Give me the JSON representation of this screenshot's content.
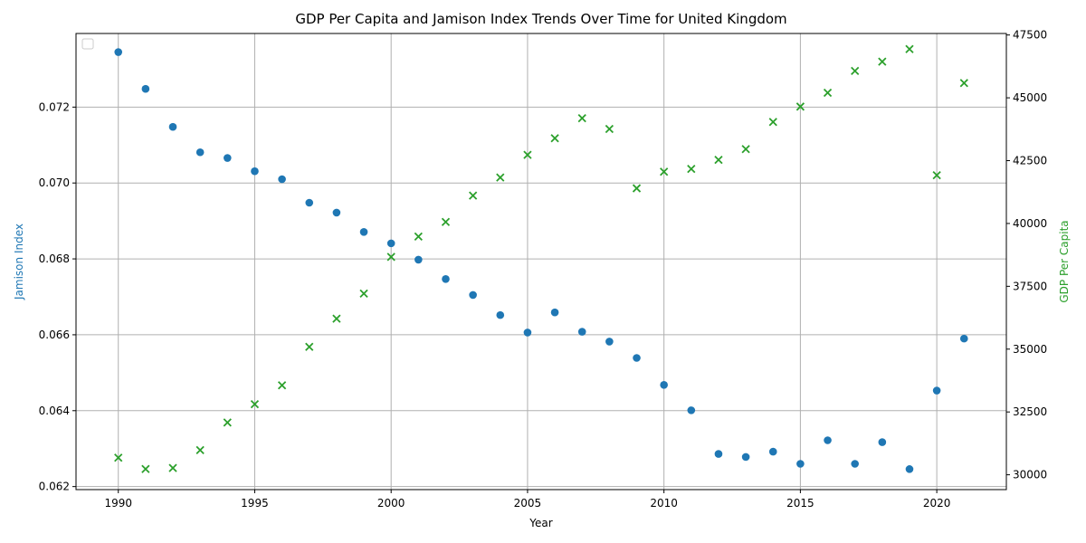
{
  "chart_data": {
    "type": "scatter",
    "title": "GDP Per Capita and Jamison Index Trends Over Time for United Kingdom",
    "xlabel": "Year",
    "ylabel_left": "Jamison Index",
    "ylabel_right": "GDP Per Capita",
    "xlim": [
      1988.45,
      2022.55
    ],
    "ylim_left": [
      0.06192,
      0.07394
    ],
    "ylim_right": [
      29410,
      47560
    ],
    "x_ticks": [
      1990,
      1995,
      2000,
      2005,
      2010,
      2015,
      2020
    ],
    "y_left_ticks": [
      "0.062",
      "0.064",
      "0.066",
      "0.068",
      "0.070",
      "0.072"
    ],
    "y_left_tick_values": [
      0.062,
      0.064,
      0.066,
      0.068,
      0.07,
      0.072
    ],
    "y_right_ticks": [
      "30000",
      "32500",
      "35000",
      "37500",
      "40000",
      "42500",
      "45000",
      "47500"
    ],
    "y_right_tick_values": [
      30000,
      32500,
      35000,
      37500,
      40000,
      42500,
      45000,
      47500
    ],
    "grid": true,
    "legend": "upper-left (empty)",
    "series": [
      {
        "axis": "left",
        "marker": "circle",
        "color": "#1f77b4",
        "points": [
          [
            1990,
            0.07345
          ],
          [
            1991,
            0.07248
          ],
          [
            1992,
            0.07148
          ],
          [
            1993,
            0.07081
          ],
          [
            1994,
            0.07066
          ],
          [
            1995,
            0.07031
          ],
          [
            1996,
            0.0701
          ],
          [
            1997,
            0.06948
          ],
          [
            1998,
            0.06922
          ],
          [
            1999,
            0.06871
          ],
          [
            2000,
            0.06841
          ],
          [
            2001,
            0.06798
          ],
          [
            2002,
            0.06747
          ],
          [
            2003,
            0.06705
          ],
          [
            2004,
            0.06652
          ],
          [
            2005,
            0.06606
          ],
          [
            2006,
            0.06659
          ],
          [
            2007,
            0.06608
          ],
          [
            2008,
            0.06582
          ],
          [
            2009,
            0.06539
          ],
          [
            2010,
            0.06468
          ],
          [
            2011,
            0.06401
          ],
          [
            2012,
            0.06286
          ],
          [
            2013,
            0.06278
          ],
          [
            2014,
            0.06292
          ],
          [
            2015,
            0.0626
          ],
          [
            2016,
            0.06322
          ],
          [
            2017,
            0.0626
          ],
          [
            2018,
            0.06317
          ],
          [
            2019,
            0.06246
          ],
          [
            2020,
            0.06453
          ],
          [
            2021,
            0.0659
          ]
        ]
      },
      {
        "axis": "right",
        "marker": "x",
        "color": "#2ca02c",
        "points": [
          [
            1990,
            30680
          ],
          [
            1991,
            30230
          ],
          [
            1992,
            30270
          ],
          [
            1993,
            30980
          ],
          [
            1994,
            32080
          ],
          [
            1995,
            32810
          ],
          [
            1996,
            33560
          ],
          [
            1997,
            35090
          ],
          [
            1998,
            36210
          ],
          [
            1999,
            37210
          ],
          [
            2000,
            38670
          ],
          [
            2001,
            39480
          ],
          [
            2002,
            40060
          ],
          [
            2003,
            41110
          ],
          [
            2004,
            41830
          ],
          [
            2005,
            42730
          ],
          [
            2006,
            43390
          ],
          [
            2007,
            44190
          ],
          [
            2008,
            43760
          ],
          [
            2009,
            41400
          ],
          [
            2010,
            42060
          ],
          [
            2011,
            42170
          ],
          [
            2012,
            42530
          ],
          [
            2013,
            42960
          ],
          [
            2014,
            44040
          ],
          [
            2015,
            44650
          ],
          [
            2016,
            45200
          ],
          [
            2017,
            46070
          ],
          [
            2018,
            46440
          ],
          [
            2019,
            46940
          ],
          [
            2020,
            41920
          ],
          [
            2021,
            45590
          ]
        ]
      }
    ]
  }
}
